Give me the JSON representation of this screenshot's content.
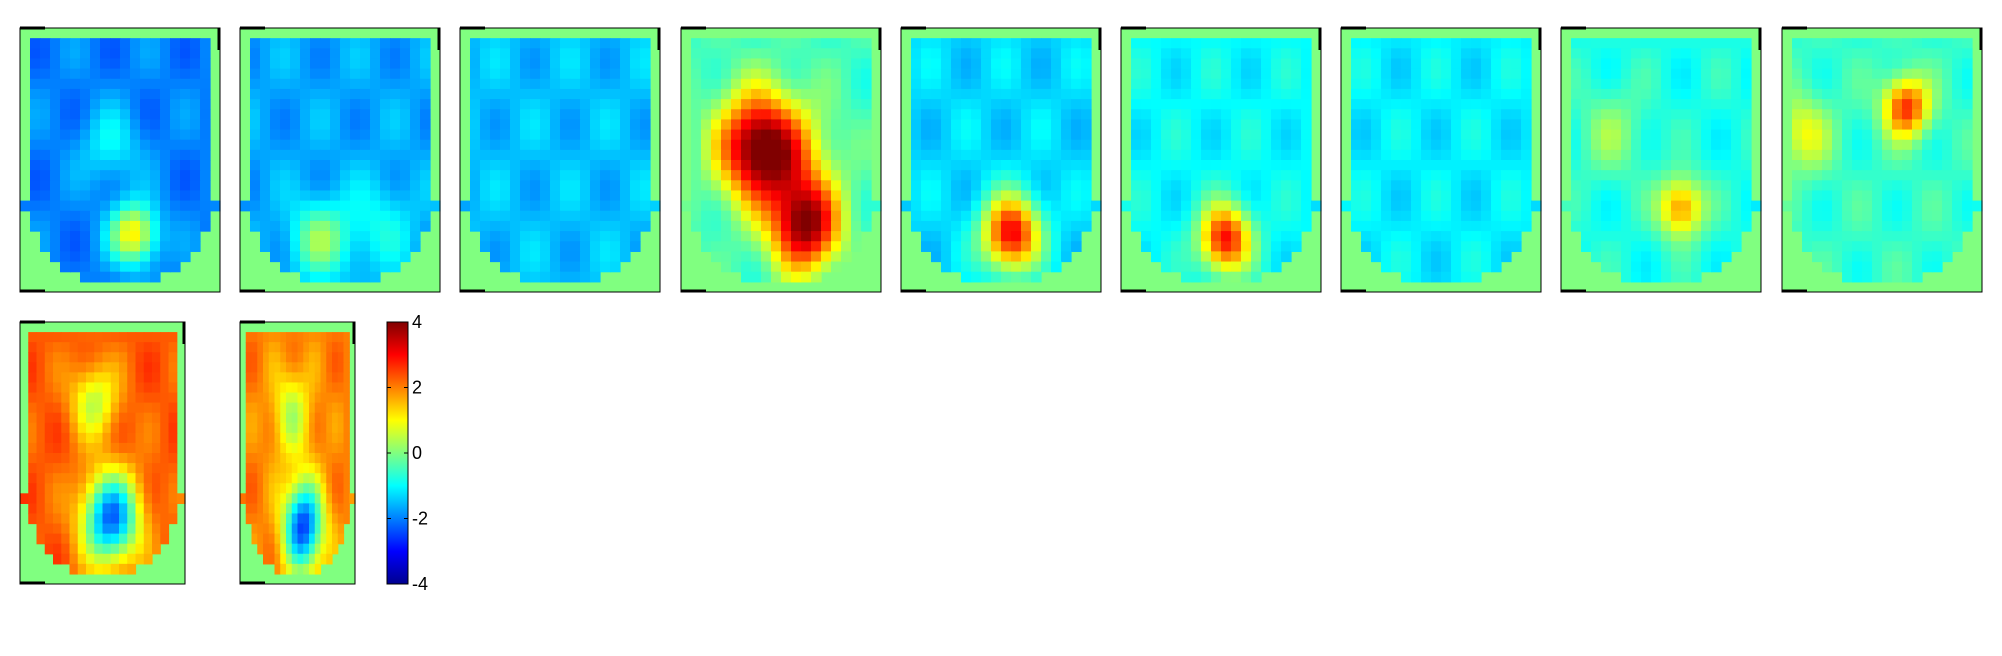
{
  "chart_data": {
    "type": "heatmap",
    "title": "",
    "colormap": "jet",
    "background_color": "#80ff80",
    "outside_shape_value": 0,
    "colorbar": {
      "range": [
        -4,
        4
      ],
      "ticks": [
        4,
        2,
        0,
        -2,
        -4
      ],
      "tick_labels": [
        "4",
        "2",
        "0",
        "-2",
        "-4"
      ],
      "orientation": "vertical"
    },
    "panels": [
      {
        "name": "map-1",
        "row": 1,
        "base": -2.0,
        "hotspots": [
          {
            "u": 0.57,
            "v": 0.78,
            "amp": 3.2,
            "s": 0.08
          },
          {
            "u": 0.45,
            "v": 0.45,
            "amp": 1.0,
            "s": 0.1
          }
        ]
      },
      {
        "name": "map-2",
        "row": 1,
        "base": -1.7,
        "hotspots": [
          {
            "u": 0.4,
            "v": 0.8,
            "amp": 1.8,
            "s": 0.1
          },
          {
            "u": 0.7,
            "v": 0.75,
            "amp": 0.8,
            "s": 0.12
          }
        ]
      },
      {
        "name": "map-3",
        "row": 1,
        "base": -1.5,
        "hotspots": []
      },
      {
        "name": "map-4",
        "row": 1,
        "base": -0.5,
        "hotspots": [
          {
            "u": 0.38,
            "v": 0.45,
            "amp": 4.3,
            "s": 0.14
          },
          {
            "u": 0.62,
            "v": 0.75,
            "amp": 4.3,
            "s": 0.12
          },
          {
            "u": 0.55,
            "v": 0.5,
            "amp": 1.5,
            "s": 0.15
          }
        ]
      },
      {
        "name": "map-5",
        "row": 1,
        "base": -1.3,
        "hotspots": [
          {
            "u": 0.55,
            "v": 0.78,
            "amp": 4.5,
            "s": 0.1
          }
        ]
      },
      {
        "name": "map-6",
        "row": 1,
        "base": -1.0,
        "hotspots": [
          {
            "u": 0.52,
            "v": 0.8,
            "amp": 4.0,
            "s": 0.09
          }
        ]
      },
      {
        "name": "map-7",
        "row": 1,
        "base": -1.1,
        "hotspots": []
      },
      {
        "name": "map-8",
        "row": 1,
        "base": -0.8,
        "hotspots": [
          {
            "u": 0.6,
            "v": 0.68,
            "amp": 2.8,
            "s": 0.08
          },
          {
            "u": 0.25,
            "v": 0.4,
            "amp": 0.9,
            "s": 0.12
          }
        ]
      },
      {
        "name": "map-9",
        "row": 1,
        "base": -0.6,
        "hotspots": [
          {
            "u": 0.62,
            "v": 0.3,
            "amp": 3.3,
            "s": 0.08
          },
          {
            "u": 0.1,
            "v": 0.4,
            "amp": 1.5,
            "s": 0.1
          }
        ]
      },
      {
        "name": "map-10",
        "row": 2,
        "base": 2.3,
        "hotspots": [
          {
            "u": 0.55,
            "v": 0.75,
            "amp": -4.5,
            "s": 0.12
          },
          {
            "u": 0.45,
            "v": 0.3,
            "amp": -1.8,
            "s": 0.1
          }
        ]
      },
      {
        "name": "map-11",
        "row": 2,
        "base": 2.0,
        "hotspots": [
          {
            "u": 0.55,
            "v": 0.78,
            "amp": -4.5,
            "s": 0.12
          },
          {
            "u": 0.45,
            "v": 0.35,
            "amp": -1.5,
            "s": 0.12
          }
        ]
      }
    ]
  }
}
